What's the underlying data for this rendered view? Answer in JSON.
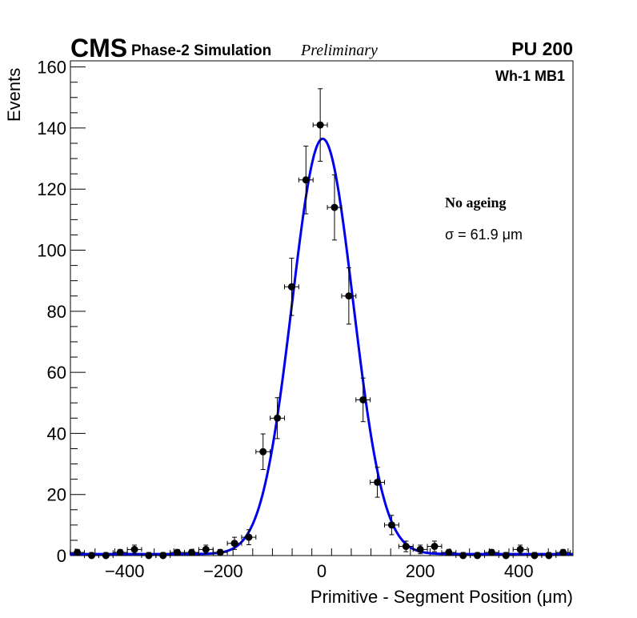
{
  "header": {
    "experiment": "CMS",
    "subtitle": "Phase-2 Simulation",
    "status": "Preliminary",
    "pileup": "PU 200"
  },
  "annotations": {
    "region": "Wh-1 MB1",
    "condition": "No ageing",
    "resolution": "σ = 61.9 μm"
  },
  "colors": {
    "fit": "#0000ee",
    "points": "#000000",
    "frame": "#000000"
  },
  "chart_data": {
    "type": "scatter",
    "title": "",
    "xlabel": "Primitive - Segment Position (μm)",
    "ylabel": "Events",
    "xlim": [
      -510,
      510
    ],
    "ylim": [
      0,
      162
    ],
    "xticks_major": [
      -400,
      -200,
      0,
      200,
      400
    ],
    "xtick_labels": [
      "−400",
      "−200",
      "0",
      "200",
      "400"
    ],
    "yticks_major": [
      0,
      20,
      40,
      60,
      80,
      100,
      120,
      140,
      160
    ],
    "ytick_labels": [
      "0",
      "20",
      "40",
      "60",
      "80",
      "100",
      "120",
      "140",
      "160"
    ],
    "bin_half_width": 14.5,
    "series": [
      {
        "name": "data",
        "kind": "points_with_errors",
        "x": [
          -496,
          -467,
          -438,
          -409,
          -380,
          -351,
          -322,
          -293,
          -264,
          -235,
          -206,
          -177,
          -148,
          -119,
          -90,
          -61,
          -32,
          -3,
          26,
          55,
          84,
          113,
          142,
          171,
          200,
          229,
          258,
          287,
          316,
          345,
          374,
          403,
          432,
          461,
          490
        ],
        "y": [
          1,
          0,
          0,
          1,
          2,
          0,
          0,
          1,
          1,
          2,
          1,
          4,
          6,
          34,
          45,
          88,
          123,
          141,
          114,
          85,
          51,
          24,
          10,
          3,
          2,
          3,
          1,
          0,
          0,
          1,
          0,
          2,
          0,
          0,
          1
        ]
      },
      {
        "name": "gaussian fit",
        "kind": "curve",
        "amplitude": 136,
        "mean": 2,
        "sigma": 61.9,
        "baseline": 0.5
      }
    ]
  }
}
